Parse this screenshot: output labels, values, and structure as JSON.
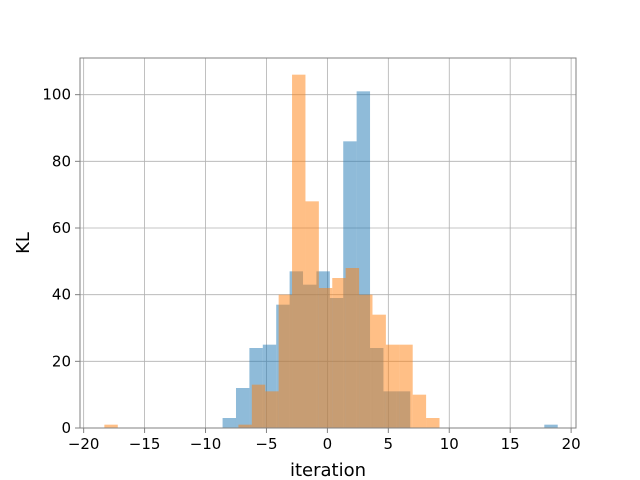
{
  "chart_data": {
    "type": "bar",
    "title": "",
    "xlabel": "iteration",
    "ylabel": "KL",
    "xlim": [
      -20.3,
      20.4
    ],
    "ylim": [
      0,
      111
    ],
    "xticks": [
      -20,
      -15,
      -10,
      -5,
      0,
      5,
      10,
      15,
      20
    ],
    "xtick_labels": [
      "−20",
      "−15",
      "−10",
      "−5",
      "0",
      "5",
      "10",
      "15",
      "20"
    ],
    "yticks": [
      0,
      20,
      40,
      60,
      80,
      100
    ],
    "ytick_labels": [
      "0",
      "20",
      "40",
      "60",
      "80",
      "100"
    ],
    "grid": true,
    "bin_width": 1.1,
    "series": [
      {
        "color": "#1f77b4",
        "opacity": 0.5,
        "bins": [
          {
            "x": -8.6,
            "y": 3
          },
          {
            "x": -7.5,
            "y": 12
          },
          {
            "x": -6.4,
            "y": 24
          },
          {
            "x": -5.3,
            "y": 25
          },
          {
            "x": -4.2,
            "y": 37
          },
          {
            "x": -3.1,
            "y": 47
          },
          {
            "x": -2.0,
            "y": 43
          },
          {
            "x": -0.9,
            "y": 47
          },
          {
            "x": 0.2,
            "y": 39
          },
          {
            "x": 1.3,
            "y": 86
          },
          {
            "x": 2.4,
            "y": 101
          },
          {
            "x": 3.5,
            "y": 24
          },
          {
            "x": 4.6,
            "y": 11
          },
          {
            "x": 5.7,
            "y": 11
          },
          {
            "x": 17.8,
            "y": 1
          }
        ]
      },
      {
        "color": "#ff7f0e",
        "opacity": 0.5,
        "bins": [
          {
            "x": -18.3,
            "y": 1
          },
          {
            "x": -7.3,
            "y": 1
          },
          {
            "x": -6.2,
            "y": 13
          },
          {
            "x": -5.1,
            "y": 11
          },
          {
            "x": -4.0,
            "y": 40
          },
          {
            "x": -2.9,
            "y": 106
          },
          {
            "x": -1.8,
            "y": 68
          },
          {
            "x": -0.7,
            "y": 42
          },
          {
            "x": 0.4,
            "y": 45
          },
          {
            "x": 1.5,
            "y": 48
          },
          {
            "x": 2.6,
            "y": 40
          },
          {
            "x": 3.7,
            "y": 34
          },
          {
            "x": 4.8,
            "y": 25
          },
          {
            "x": 5.9,
            "y": 25
          },
          {
            "x": 7.0,
            "y": 10
          },
          {
            "x": 8.1,
            "y": 3
          }
        ]
      }
    ]
  }
}
